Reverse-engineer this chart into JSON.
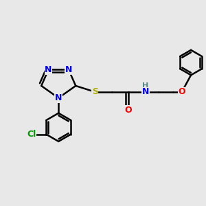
{
  "bg_color": "#e8e8e8",
  "bond_color": "#000000",
  "bond_width": 1.8,
  "atom_colors": {
    "N": "#0000ee",
    "S": "#aaaa00",
    "O": "#ff0000",
    "Cl": "#009900",
    "C": "#000000",
    "H": "#558888"
  },
  "font_size": 9,
  "fig_size": [
    3.0,
    3.0
  ],
  "dpi": 100
}
